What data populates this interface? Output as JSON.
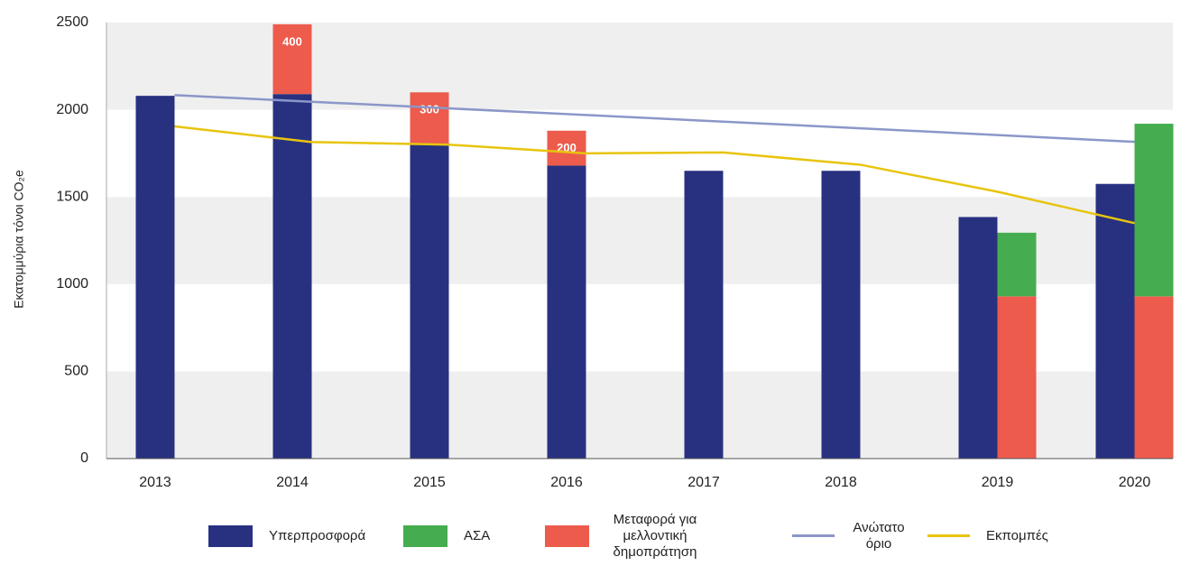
{
  "chart_data": {
    "type": "bar",
    "y_label": "Εκατομμύρια τόνοι CO₂e",
    "categories": [
      "2013",
      "2014",
      "2015",
      "2016",
      "2017",
      "2018",
      "2019",
      "2020"
    ],
    "series": [
      {
        "name": "Υπερπροσφορά",
        "type": "bar",
        "color": "#283180",
        "values": [
          2080,
          2090,
          1800,
          1680,
          1650,
          1650,
          1385,
          1575
        ]
      },
      {
        "name": "ΑΣΑ",
        "type": "bar",
        "color": "#45ad4f",
        "values": [
          null,
          null,
          null,
          null,
          null,
          null,
          365,
          990
        ]
      },
      {
        "name": "Μεταφορά για μελλοντική δημοπράτηση",
        "type": "bar",
        "color": "#ec5b4c",
        "values": [
          null,
          400,
          300,
          200,
          null,
          null,
          930,
          930
        ]
      },
      {
        "name": "Ανώτατο όριο",
        "type": "line",
        "color": "#8b97c8",
        "values": [
          2084,
          2046,
          2008,
          1970,
          1932,
          1894,
          1855,
          1816
        ]
      },
      {
        "name": "Εκπομπές",
        "type": "line",
        "color": "#e8c40e",
        "values": [
          1905,
          1815,
          1800,
          1750,
          1755,
          1685,
          1530,
          1350
        ]
      }
    ],
    "ylim": [
      0,
      2500
    ],
    "yticks": [
      0,
      500,
      1000,
      1500,
      2000,
      2500
    ],
    "grid": "bands"
  }
}
